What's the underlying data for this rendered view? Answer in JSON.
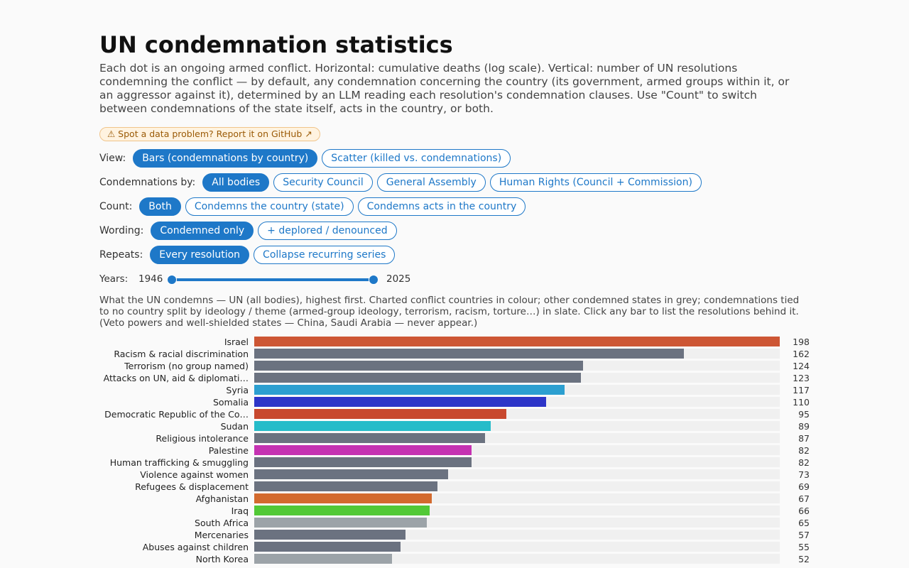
{
  "header": {
    "title": "UN condemnation statistics",
    "intro": "Each dot is an ongoing armed conflict. Horizontal: cumulative deaths (log scale). Vertical: number of UN resolutions condemning the conflict — by default, any condemnation concerning the country (its government, armed groups within it, or an aggressor against it), determined by an LLM reading each resolution's condemnation clauses. Use \"Count\" to switch between condemnations of the state itself, acts in the country, or both.",
    "report_label": "⚠ Spot a data problem? Report it on GitHub ↗"
  },
  "controls": [
    {
      "label": "View:",
      "options": [
        "Bars (condemnations by country)",
        "Scatter (killed vs. condemnations)"
      ],
      "selected": 0
    },
    {
      "label": "Condemnations by:",
      "options": [
        "All bodies",
        "Security Council",
        "General Assembly",
        "Human Rights (Council + Commission)"
      ],
      "selected": 0
    },
    {
      "label": "Count:",
      "options": [
        "Both",
        "Condemns the country (state)",
        "Condemns acts in the country"
      ],
      "selected": 0
    },
    {
      "label": "Wording:",
      "options": [
        "Condemned only",
        "+ deplored / denounced"
      ],
      "selected": 0
    },
    {
      "label": "Repeats:",
      "options": [
        "Every resolution",
        "Collapse recurring series"
      ],
      "selected": 0
    }
  ],
  "years": {
    "label": "Years:",
    "start": "1946",
    "end": "2025",
    "min": 1946,
    "max": 2025,
    "from": 1946,
    "to": 2025
  },
  "note": "What the UN condemns — UN (all bodies), highest first. Charted conflict countries in colour; other condemned states in grey; condemnations tied to no country split by ideology / theme (armed-group ideology, terrorism, racism, torture…) in slate. Click any bar to list the resolutions behind it. (Veto powers and well-shielded states — China, Saudi Arabia — never appear.)",
  "chart_data": {
    "type": "bar",
    "orientation": "horizontal",
    "xlim": [
      0,
      198
    ],
    "categories": [
      "Israel",
      "Racism & racial discrimination",
      "Terrorism (no group named)",
      "Attacks on UN, aid & diplomati…",
      "Syria",
      "Somalia",
      "Democratic Republic of the Co…",
      "Sudan",
      "Religious intolerance",
      "Palestine",
      "Human trafficking & smuggling",
      "Violence against women",
      "Refugees & displacement",
      "Afghanistan",
      "Iraq",
      "South Africa",
      "Mercenaries",
      "Abuses against children",
      "North Korea"
    ],
    "values": [
      198,
      162,
      124,
      123,
      117,
      110,
      95,
      89,
      87,
      82,
      82,
      73,
      69,
      67,
      66,
      65,
      57,
      55,
      52
    ],
    "colors": [
      "#cd5634",
      "#6b7280",
      "#6b7280",
      "#6b7280",
      "#2c9fd0",
      "#2d35c8",
      "#c8482e",
      "#26bcc9",
      "#6b7280",
      "#c532b2",
      "#6b7280",
      "#6b7280",
      "#6b7280",
      "#d36a2e",
      "#52c936",
      "#9ca3a8",
      "#6b7280",
      "#6b7280",
      "#9ca3a8"
    ]
  }
}
